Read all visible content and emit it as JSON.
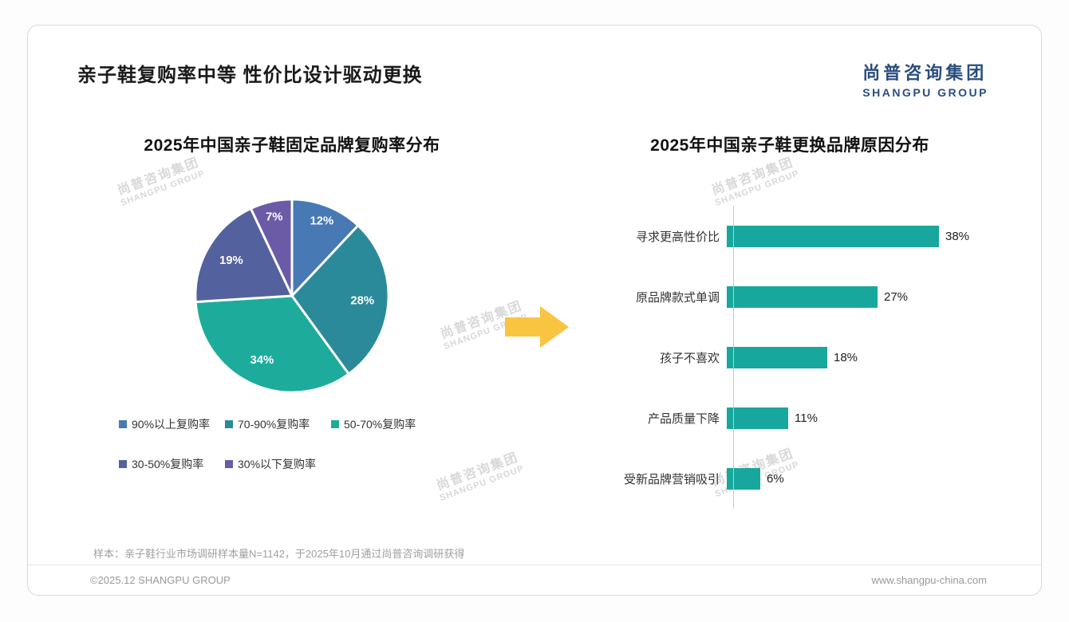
{
  "page": {
    "title": "亲子鞋复购率中等 性价比设计驱动更换",
    "logo": {
      "cn": "尚普咨询集团",
      "en": "SHANGPU GROUP"
    },
    "watermark": {
      "cn": "尚普咨询集团",
      "en": "SHANGPU GROUP"
    },
    "sample_note": "样本：亲子鞋行业市场调研样本量N=1142，于2025年10月通过尚普咨询调研获得",
    "footer": {
      "left": "©2025.12 SHANGPU GROUP",
      "right": "www.shangpu-china.com"
    }
  },
  "arrow_color": "#F9C440",
  "chart_data": [
    {
      "type": "pie",
      "title": "2025年中国亲子鞋固定品牌复购率分布",
      "labels": [
        "90%以上复购率",
        "70-90%复购率",
        "50-70%复购率",
        "30-50%复购率",
        "30%以下复购率"
      ],
      "values": [
        12,
        28,
        34,
        19,
        7
      ],
      "data_labels": [
        "12%",
        "28%",
        "34%",
        "19%",
        "7%"
      ],
      "colors": [
        "#4779B5",
        "#2B8A99",
        "#1DAC9C",
        "#53619E",
        "#6B5BA6"
      ],
      "legend_position": "bottom",
      "start_angle_deg": 0,
      "direction": "clockwise"
    },
    {
      "type": "bar",
      "orientation": "horizontal",
      "title": "2025年中国亲子鞋更换品牌原因分布",
      "categories": [
        "寻求更高性价比",
        "原品牌款式单调",
        "孩子不喜欢",
        "产品质量下降",
        "受新品牌营销吸引"
      ],
      "values": [
        38,
        27,
        18,
        11,
        6
      ],
      "value_labels": [
        "38%",
        "27%",
        "18%",
        "11%",
        "6%"
      ],
      "bar_color": "#18A79C",
      "xlim": [
        0,
        40
      ],
      "grid": false,
      "axis_line_color": "#c8c8c8"
    }
  ]
}
